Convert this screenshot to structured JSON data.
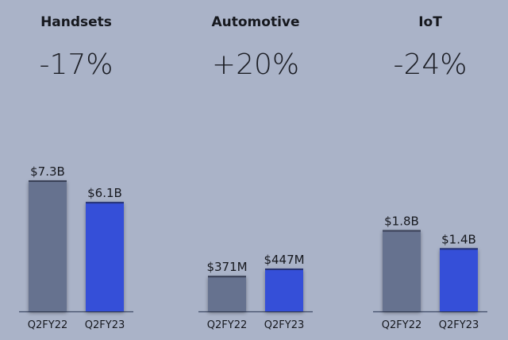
{
  "colors": {
    "background": "#aab3c8",
    "prior": "#66728f",
    "current": "#344fd8",
    "axis": "#3f4a66",
    "text": "#16181e"
  },
  "chart_data": [
    {
      "type": "bar",
      "title": "Handsets",
      "change": "-17%",
      "categories": [
        "Q2FY22",
        "Q2FY23"
      ],
      "values": [
        7.3,
        6.1
      ],
      "value_labels": [
        "$7.3B",
        "$6.1B"
      ],
      "unit": "$B"
    },
    {
      "type": "bar",
      "title": "Automotive",
      "change": "+20%",
      "categories": [
        "Q2FY22",
        "Q2FY23"
      ],
      "values": [
        371,
        447
      ],
      "value_labels": [
        "$371M",
        "$447M"
      ],
      "unit": "$M"
    },
    {
      "type": "bar",
      "title": "IoT",
      "change": "-24%",
      "categories": [
        "Q2FY22",
        "Q2FY23"
      ],
      "values": [
        1.8,
        1.4
      ],
      "value_labels": [
        "$1.8B",
        "$1.4B"
      ],
      "unit": "$B"
    }
  ]
}
